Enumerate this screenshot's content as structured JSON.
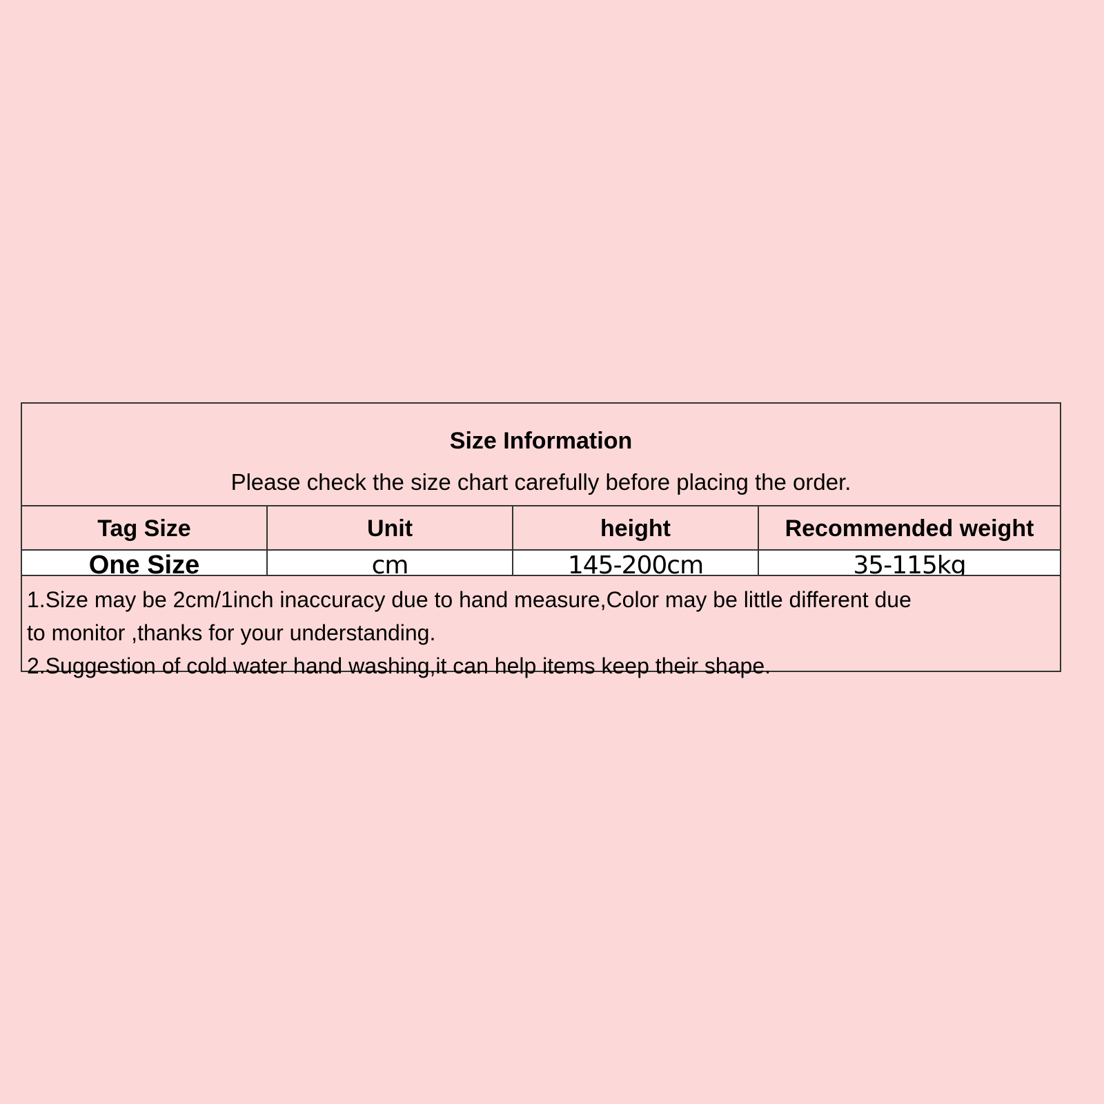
{
  "title": "Size Information",
  "subtitle": "Please check the size chart carefully before placing the order.",
  "table": {
    "headers": [
      "Tag Size",
      "Unit",
      "height",
      "Recommended weight"
    ],
    "rows": [
      [
        "One Size",
        "cm",
        "145-200cm",
        "35-115kg"
      ]
    ]
  },
  "notes": [
    "1.Size may be 2cm/1inch inaccuracy due to hand measure,Color may be little different due",
    "to monitor ,thanks for your understanding.",
    "2.Suggestion of cold water hand washing,it can help items keep their shape."
  ],
  "colors": {
    "background": "#fcd9d8",
    "data_row": "#ffffff",
    "border": "#333333"
  }
}
